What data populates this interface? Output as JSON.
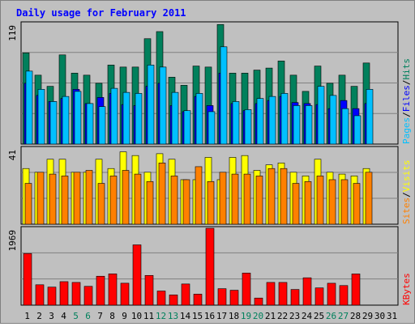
{
  "title": "Daily usage for February 2011",
  "colors": {
    "background": "#c0c0c0",
    "title": "#0000ff",
    "hits": "#00805c",
    "files": "#0000ff",
    "pages": "#00c0ff",
    "visits": "#ffff00",
    "sites": "#ff8000",
    "kbytes": "#ff0000",
    "weekend_label": "#00805c",
    "weekday_label": "#000000"
  },
  "chart_data": [
    {
      "type": "bar",
      "panel": "hits-files-pages",
      "ymax_label": "119",
      "ylim": [
        0,
        119
      ],
      "axis_label_parts": [
        "Pages",
        "/",
        "Files",
        "/",
        "Hits"
      ],
      "categories": [
        "1",
        "2",
        "3",
        "4",
        "5",
        "6",
        "7",
        "8",
        "9",
        "10",
        "11",
        "12",
        "13",
        "14",
        "15",
        "16",
        "17",
        "18",
        "19",
        "20",
        "21",
        "22",
        "23",
        "24",
        "25",
        "26",
        "27",
        "28",
        "29",
        "30",
        "31"
      ],
      "series": [
        {
          "name": "Hits",
          "values": [
            90,
            68,
            57,
            88,
            70,
            68,
            60,
            78,
            76,
            76,
            104,
            111,
            66,
            58,
            77,
            76,
            118,
            70,
            70,
            73,
            75,
            82,
            68,
            52,
            77,
            60,
            68,
            57,
            80,
            0,
            0
          ]
        },
        {
          "name": "Files",
          "values": [
            60,
            48,
            42,
            45,
            54,
            40,
            46,
            50,
            39,
            38,
            57,
            60,
            38,
            32,
            47,
            38,
            70,
            40,
            33,
            40,
            43,
            47,
            41,
            40,
            39,
            35,
            43,
            35,
            40,
            0,
            0
          ]
        },
        {
          "name": "Pages",
          "values": [
            72,
            54,
            42,
            47,
            52,
            40,
            37,
            55,
            51,
            50,
            78,
            76,
            51,
            33,
            50,
            32,
            96,
            42,
            34,
            45,
            47,
            50,
            38,
            38,
            57,
            48,
            35,
            28,
            54,
            0,
            0
          ]
        }
      ]
    },
    {
      "type": "bar",
      "panel": "visits-sites",
      "ymax_label": "41",
      "ylim": [
        0,
        41
      ],
      "axis_label_parts": [
        "Sites",
        "/",
        "Visits"
      ],
      "categories": [
        "1",
        "2",
        "3",
        "4",
        "5",
        "6",
        "7",
        "8",
        "9",
        "10",
        "11",
        "12",
        "13",
        "14",
        "15",
        "16",
        "17",
        "18",
        "19",
        "20",
        "21",
        "22",
        "23",
        "24",
        "25",
        "26",
        "27",
        "28",
        "29",
        "30",
        "31"
      ],
      "series": [
        {
          "name": "Visits",
          "values": [
            30,
            28,
            35,
            35,
            28,
            28,
            35,
            30,
            39,
            37,
            28,
            38,
            35,
            24,
            24,
            36,
            24,
            36,
            37,
            29,
            32,
            33,
            28,
            26,
            35,
            28,
            27,
            26,
            30,
            0,
            0
          ]
        },
        {
          "name": "Sites",
          "values": [
            22,
            28,
            27,
            26,
            28,
            29,
            22,
            26,
            29,
            27,
            23,
            33,
            26,
            24,
            31,
            23,
            28,
            27,
            27,
            26,
            30,
            30,
            22,
            23,
            26,
            24,
            24,
            22,
            28,
            0,
            0
          ]
        }
      ]
    },
    {
      "type": "bar",
      "panel": "kbytes",
      "ymax_label": "1969",
      "ylim": [
        0,
        1969
      ],
      "axis_label_parts": [
        "KBytes"
      ],
      "categories": [
        "1",
        "2",
        "3",
        "4",
        "5",
        "6",
        "7",
        "8",
        "9",
        "10",
        "11",
        "12",
        "13",
        "14",
        "15",
        "16",
        "17",
        "18",
        "19",
        "20",
        "21",
        "22",
        "23",
        "24",
        "25",
        "26",
        "27",
        "28",
        "29",
        "30",
        "31"
      ],
      "series": [
        {
          "name": "KBytes",
          "values": [
            1322,
            522,
            462,
            602,
            582,
            482,
            741,
            801,
            562,
            1544,
            761,
            362,
            262,
            542,
            282,
            1969,
            422,
            382,
            822,
            182,
            582,
            582,
            402,
            701,
            442,
            561,
            502,
            799,
            0,
            0,
            0
          ]
        }
      ]
    }
  ],
  "x_labels": [
    {
      "label": "1",
      "weekend": false
    },
    {
      "label": "2",
      "weekend": false
    },
    {
      "label": "3",
      "weekend": false
    },
    {
      "label": "4",
      "weekend": false
    },
    {
      "label": "5",
      "weekend": true
    },
    {
      "label": "6",
      "weekend": true
    },
    {
      "label": "7",
      "weekend": false
    },
    {
      "label": "8",
      "weekend": false
    },
    {
      "label": "9",
      "weekend": false
    },
    {
      "label": "10",
      "weekend": false
    },
    {
      "label": "11",
      "weekend": false
    },
    {
      "label": "12",
      "weekend": true
    },
    {
      "label": "13",
      "weekend": true
    },
    {
      "label": "14",
      "weekend": false
    },
    {
      "label": "15",
      "weekend": false
    },
    {
      "label": "16",
      "weekend": false
    },
    {
      "label": "17",
      "weekend": false
    },
    {
      "label": "18",
      "weekend": false
    },
    {
      "label": "19",
      "weekend": true
    },
    {
      "label": "20",
      "weekend": true
    },
    {
      "label": "21",
      "weekend": false
    },
    {
      "label": "22",
      "weekend": false
    },
    {
      "label": "23",
      "weekend": false
    },
    {
      "label": "24",
      "weekend": false
    },
    {
      "label": "25",
      "weekend": false
    },
    {
      "label": "26",
      "weekend": true
    },
    {
      "label": "27",
      "weekend": true
    },
    {
      "label": "28",
      "weekend": false
    },
    {
      "label": "29",
      "weekend": false
    },
    {
      "label": "30",
      "weekend": false
    },
    {
      "label": "31",
      "weekend": false
    }
  ]
}
